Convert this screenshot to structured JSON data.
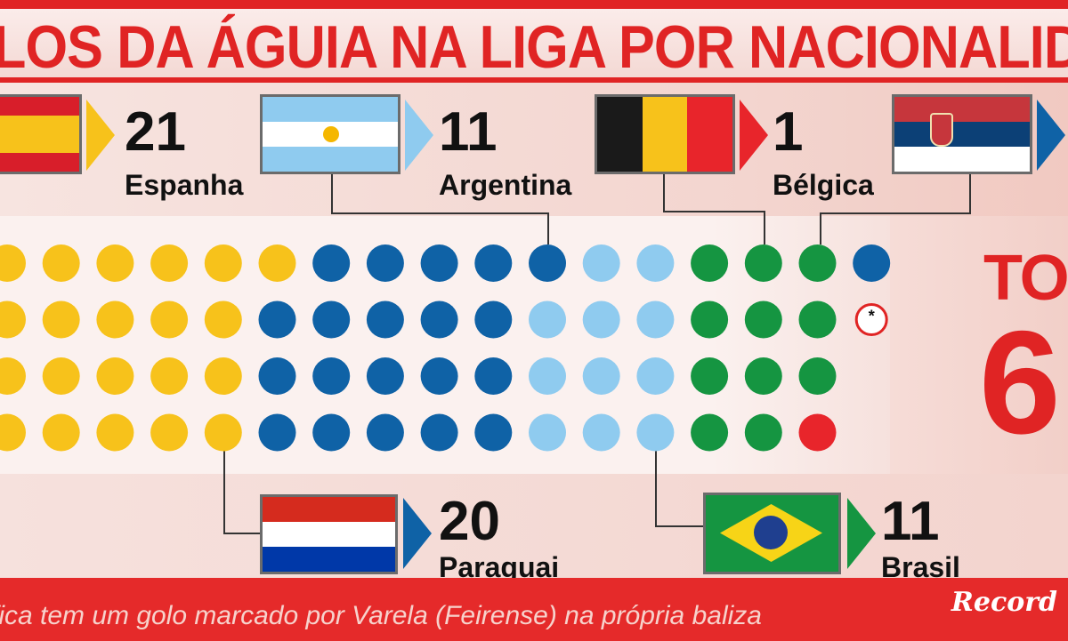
{
  "title": "LOS DA ÁGUIA NA LIGA POR NACIONALIDADE",
  "total": {
    "label": "TOT",
    "value": "6"
  },
  "footnote": "fica tem um golo marcado por Varela (Feirense) na própria baliza",
  "brand": "Record",
  "colors": {
    "accent": "#e02424",
    "Espanha": "#f7c21b",
    "Paraguai": "#0f62a6",
    "Argentina": "#8fcbef",
    "Brasil": "#159541",
    "Bélgica": "#e8252b",
    "Sérvia": "#0f62a6",
    "own_goal": "#e02424"
  },
  "countries": {
    "espanha": {
      "count": "21",
      "name": "Espanha"
    },
    "argentina": {
      "count": "11",
      "name": "Argentina"
    },
    "belgica": {
      "count": "1",
      "name": "Bélgica"
    },
    "paraguai": {
      "count": "20",
      "name": "Paraguai"
    },
    "brasil": {
      "count": "11",
      "name": "Brasil"
    }
  },
  "own_goal_marker": "*",
  "chart_data": {
    "type": "dot-matrix",
    "categories": [
      "Espanha",
      "Paraguai",
      "Argentina",
      "Brasil",
      "Bélgica",
      "Sérvia",
      "own goal"
    ],
    "values": [
      21,
      20,
      11,
      11,
      1,
      1,
      1
    ]
  }
}
